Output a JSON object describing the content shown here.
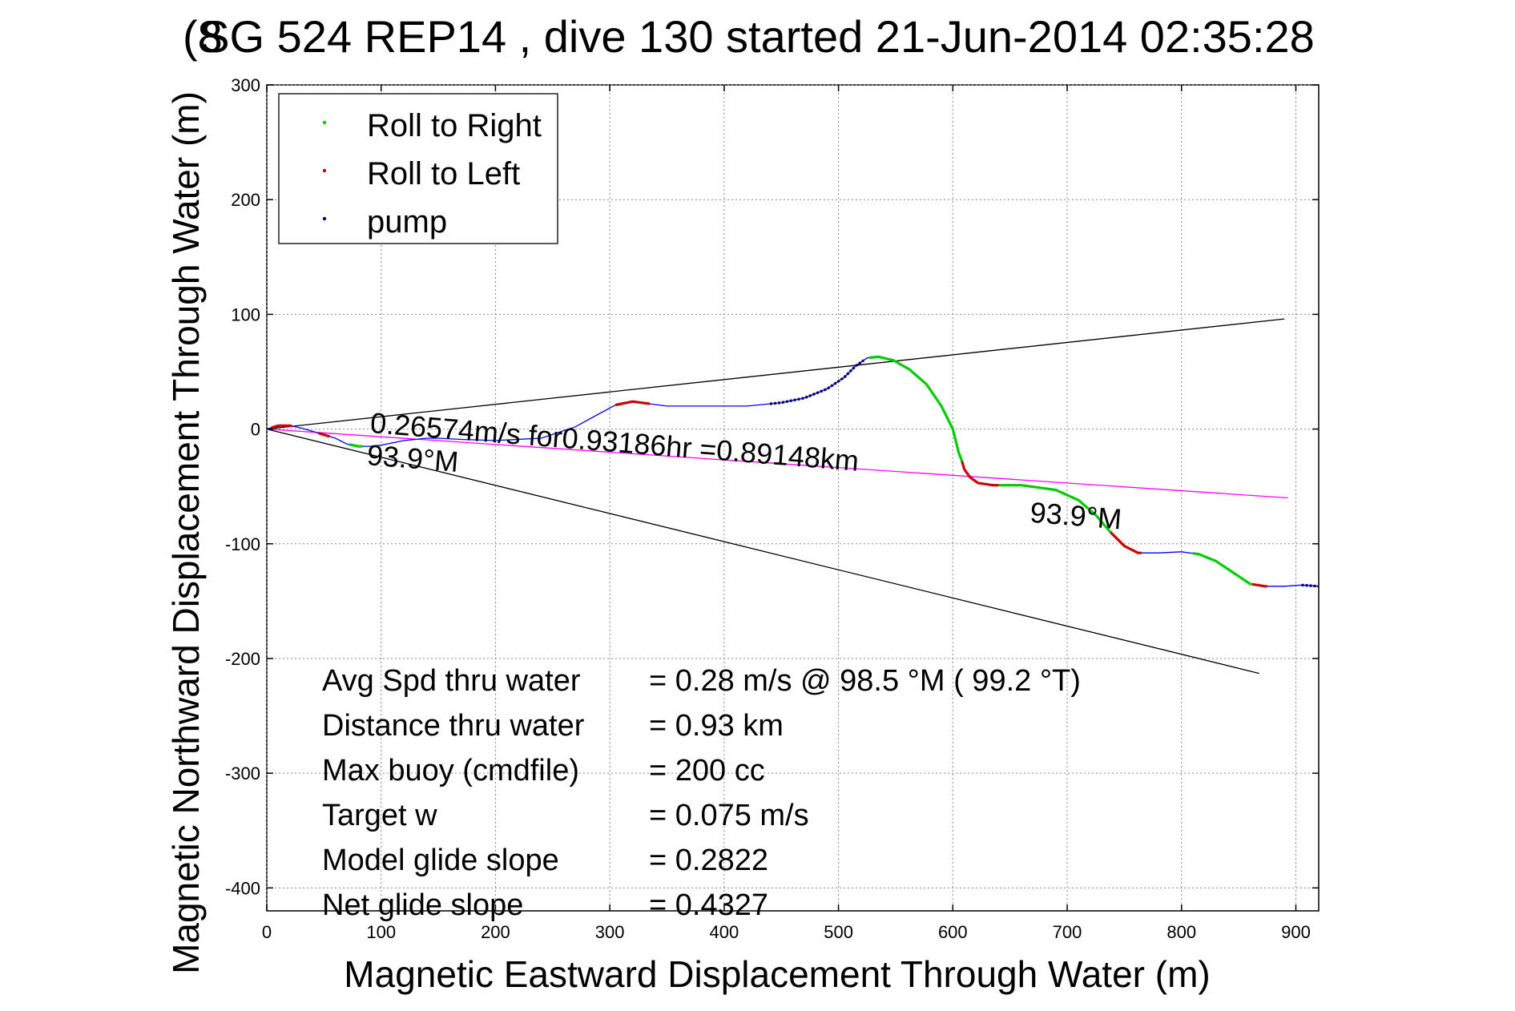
{
  "chart_data": {
    "type": "line",
    "title": "SG 524   REP14  , dive 130 started 21-Jun-2014 02:35:28",
    "title_overlap_glyph": "(8",
    "xlabel": "Magnetic Eastward Displacement Through Water (m)",
    "ylabel": "Magnetic Northward Displacement Through Water (m)",
    "xlim": [
      0,
      920
    ],
    "ylim": [
      -420,
      300
    ],
    "xticks": [
      0,
      100,
      200,
      300,
      400,
      500,
      600,
      700,
      800,
      900
    ],
    "yticks": [
      300,
      200,
      100,
      0,
      -100,
      -200,
      -300,
      -400
    ],
    "grid": true,
    "grid_style": "dotted",
    "legend": {
      "placement": "top-left",
      "entries": [
        {
          "label": "Roll to Right",
          "color": "#00cc00"
        },
        {
          "label": "Roll to Left",
          "color": "#cc0000"
        },
        {
          "label": "pump",
          "color": "#000066"
        }
      ]
    },
    "series": [
      {
        "name": "track",
        "color": "#0000ff",
        "x": [
          0,
          10,
          20,
          30,
          40,
          50,
          60,
          70,
          80,
          90,
          100,
          110,
          120,
          130,
          140,
          150,
          170,
          200,
          240,
          270,
          290,
          305,
          320,
          335,
          350,
          380,
          420,
          450,
          470,
          490,
          505,
          515,
          525,
          535,
          548,
          562,
          577,
          590,
          600,
          605,
          608,
          610,
          615,
          622,
          635,
          660,
          690,
          710,
          725,
          738,
          750,
          762,
          780,
          800,
          815,
          830,
          845,
          860,
          873,
          890,
          905,
          920
        ],
        "y": [
          0,
          3,
          3,
          1,
          -2,
          -5,
          -8,
          -13,
          -15,
          -15,
          -14,
          -12,
          -10,
          -9,
          -8,
          -8,
          -9,
          -10,
          -8,
          2,
          13,
          21,
          24,
          22,
          20,
          20,
          20,
          23,
          27,
          35,
          45,
          55,
          62,
          63,
          60,
          52,
          39,
          20,
          0,
          -20,
          -28,
          -35,
          -42,
          -47,
          -49,
          -49,
          -53,
          -62,
          -75,
          -90,
          -102,
          -108,
          -108,
          -107,
          -109,
          -115,
          -125,
          -135,
          -137,
          -137,
          -136,
          -137
        ]
      }
    ],
    "segments": [
      {
        "kind": "roll_left",
        "x_range": [
          4,
          22
        ]
      },
      {
        "kind": "roll_left",
        "x_range": [
          45,
          55
        ]
      },
      {
        "kind": "roll_right",
        "x_range": [
          72,
          84
        ]
      },
      {
        "kind": "roll_left",
        "x_range": [
          305,
          335
        ]
      },
      {
        "kind": "pump",
        "x_range": [
          440,
          522
        ]
      },
      {
        "kind": "roll_right",
        "x_range": [
          527,
          608
        ]
      },
      {
        "kind": "roll_left",
        "x_range": [
          608,
          640
        ]
      },
      {
        "kind": "roll_right",
        "x_range": [
          640,
          738
        ]
      },
      {
        "kind": "roll_left",
        "x_range": [
          738,
          765
        ]
      },
      {
        "kind": "roll_right",
        "x_range": [
          810,
          862
        ]
      },
      {
        "kind": "roll_left",
        "x_range": [
          862,
          875
        ]
      },
      {
        "kind": "pump",
        "x_range": [
          905,
          920
        ]
      }
    ],
    "reference_lines": [
      {
        "name": "upper bound",
        "color": "#000000",
        "x": [
          0,
          890
        ],
        "y": [
          0,
          96
        ]
      },
      {
        "name": "lower bound",
        "color": "#000000",
        "x": [
          0,
          868
        ],
        "y": [
          0,
          -213
        ]
      },
      {
        "name": "heading",
        "color": "#ff00ff",
        "x": [
          0,
          893
        ],
        "y": [
          0,
          -60
        ]
      }
    ],
    "annotations": [
      {
        "text": "0.26574m/s for0.93186hr =0.89148km",
        "x": 90,
        "y": -3,
        "rotate": -4.5
      },
      {
        "text": "93.9°M",
        "x": 87,
        "y": -31,
        "rotate": -4.5
      },
      {
        "text": "93.9°M",
        "x": 667,
        "y": -81,
        "rotate": -4.5
      }
    ],
    "stats": [
      {
        "label": "Avg Spd thru water",
        "value": "=  0.28 m/s @  98.5 °M ( 99.2 °T)"
      },
      {
        "label": "Distance thru water",
        "value": "=  0.93 km"
      },
      {
        "label": "Max buoy (cmdfile)",
        "value": "= 200 cc"
      },
      {
        "label": "Target w",
        "value": "= 0.075 m/s"
      },
      {
        "label": "Model glide slope",
        "value": "= 0.2822"
      },
      {
        "label": "Net glide slope",
        "value": "= 0.4327"
      }
    ]
  }
}
